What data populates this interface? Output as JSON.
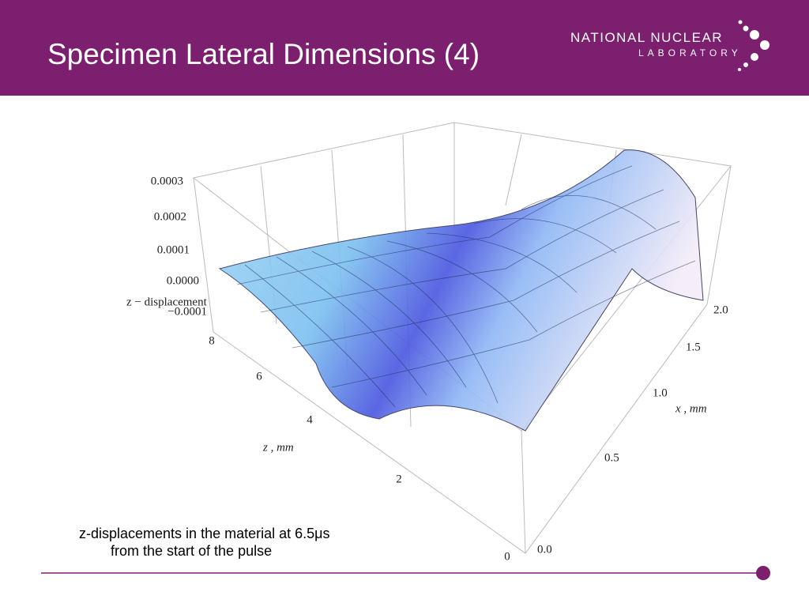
{
  "header": {
    "title": "Specimen Lateral Dimensions (4)",
    "logo": {
      "line1": "NATIONAL NUCLEAR",
      "line2": "LABORATORY"
    }
  },
  "plot": {
    "z_axis_label": "z − displacement",
    "z_ticks": [
      "0.0003",
      "0.0002",
      "0.0001",
      "0.0000",
      "−0.0001"
    ],
    "depth_axis_label": "z , mm",
    "depth_ticks": [
      "8",
      "6",
      "4",
      "2",
      "0"
    ],
    "x_axis_label": "x , mm",
    "x_ticks": [
      "2.0",
      "1.5",
      "1.0",
      "0.5",
      "0.0"
    ]
  },
  "caption": [
    "z-displacements in the material at 6.5μs",
    "from the start of the pulse"
  ]
}
